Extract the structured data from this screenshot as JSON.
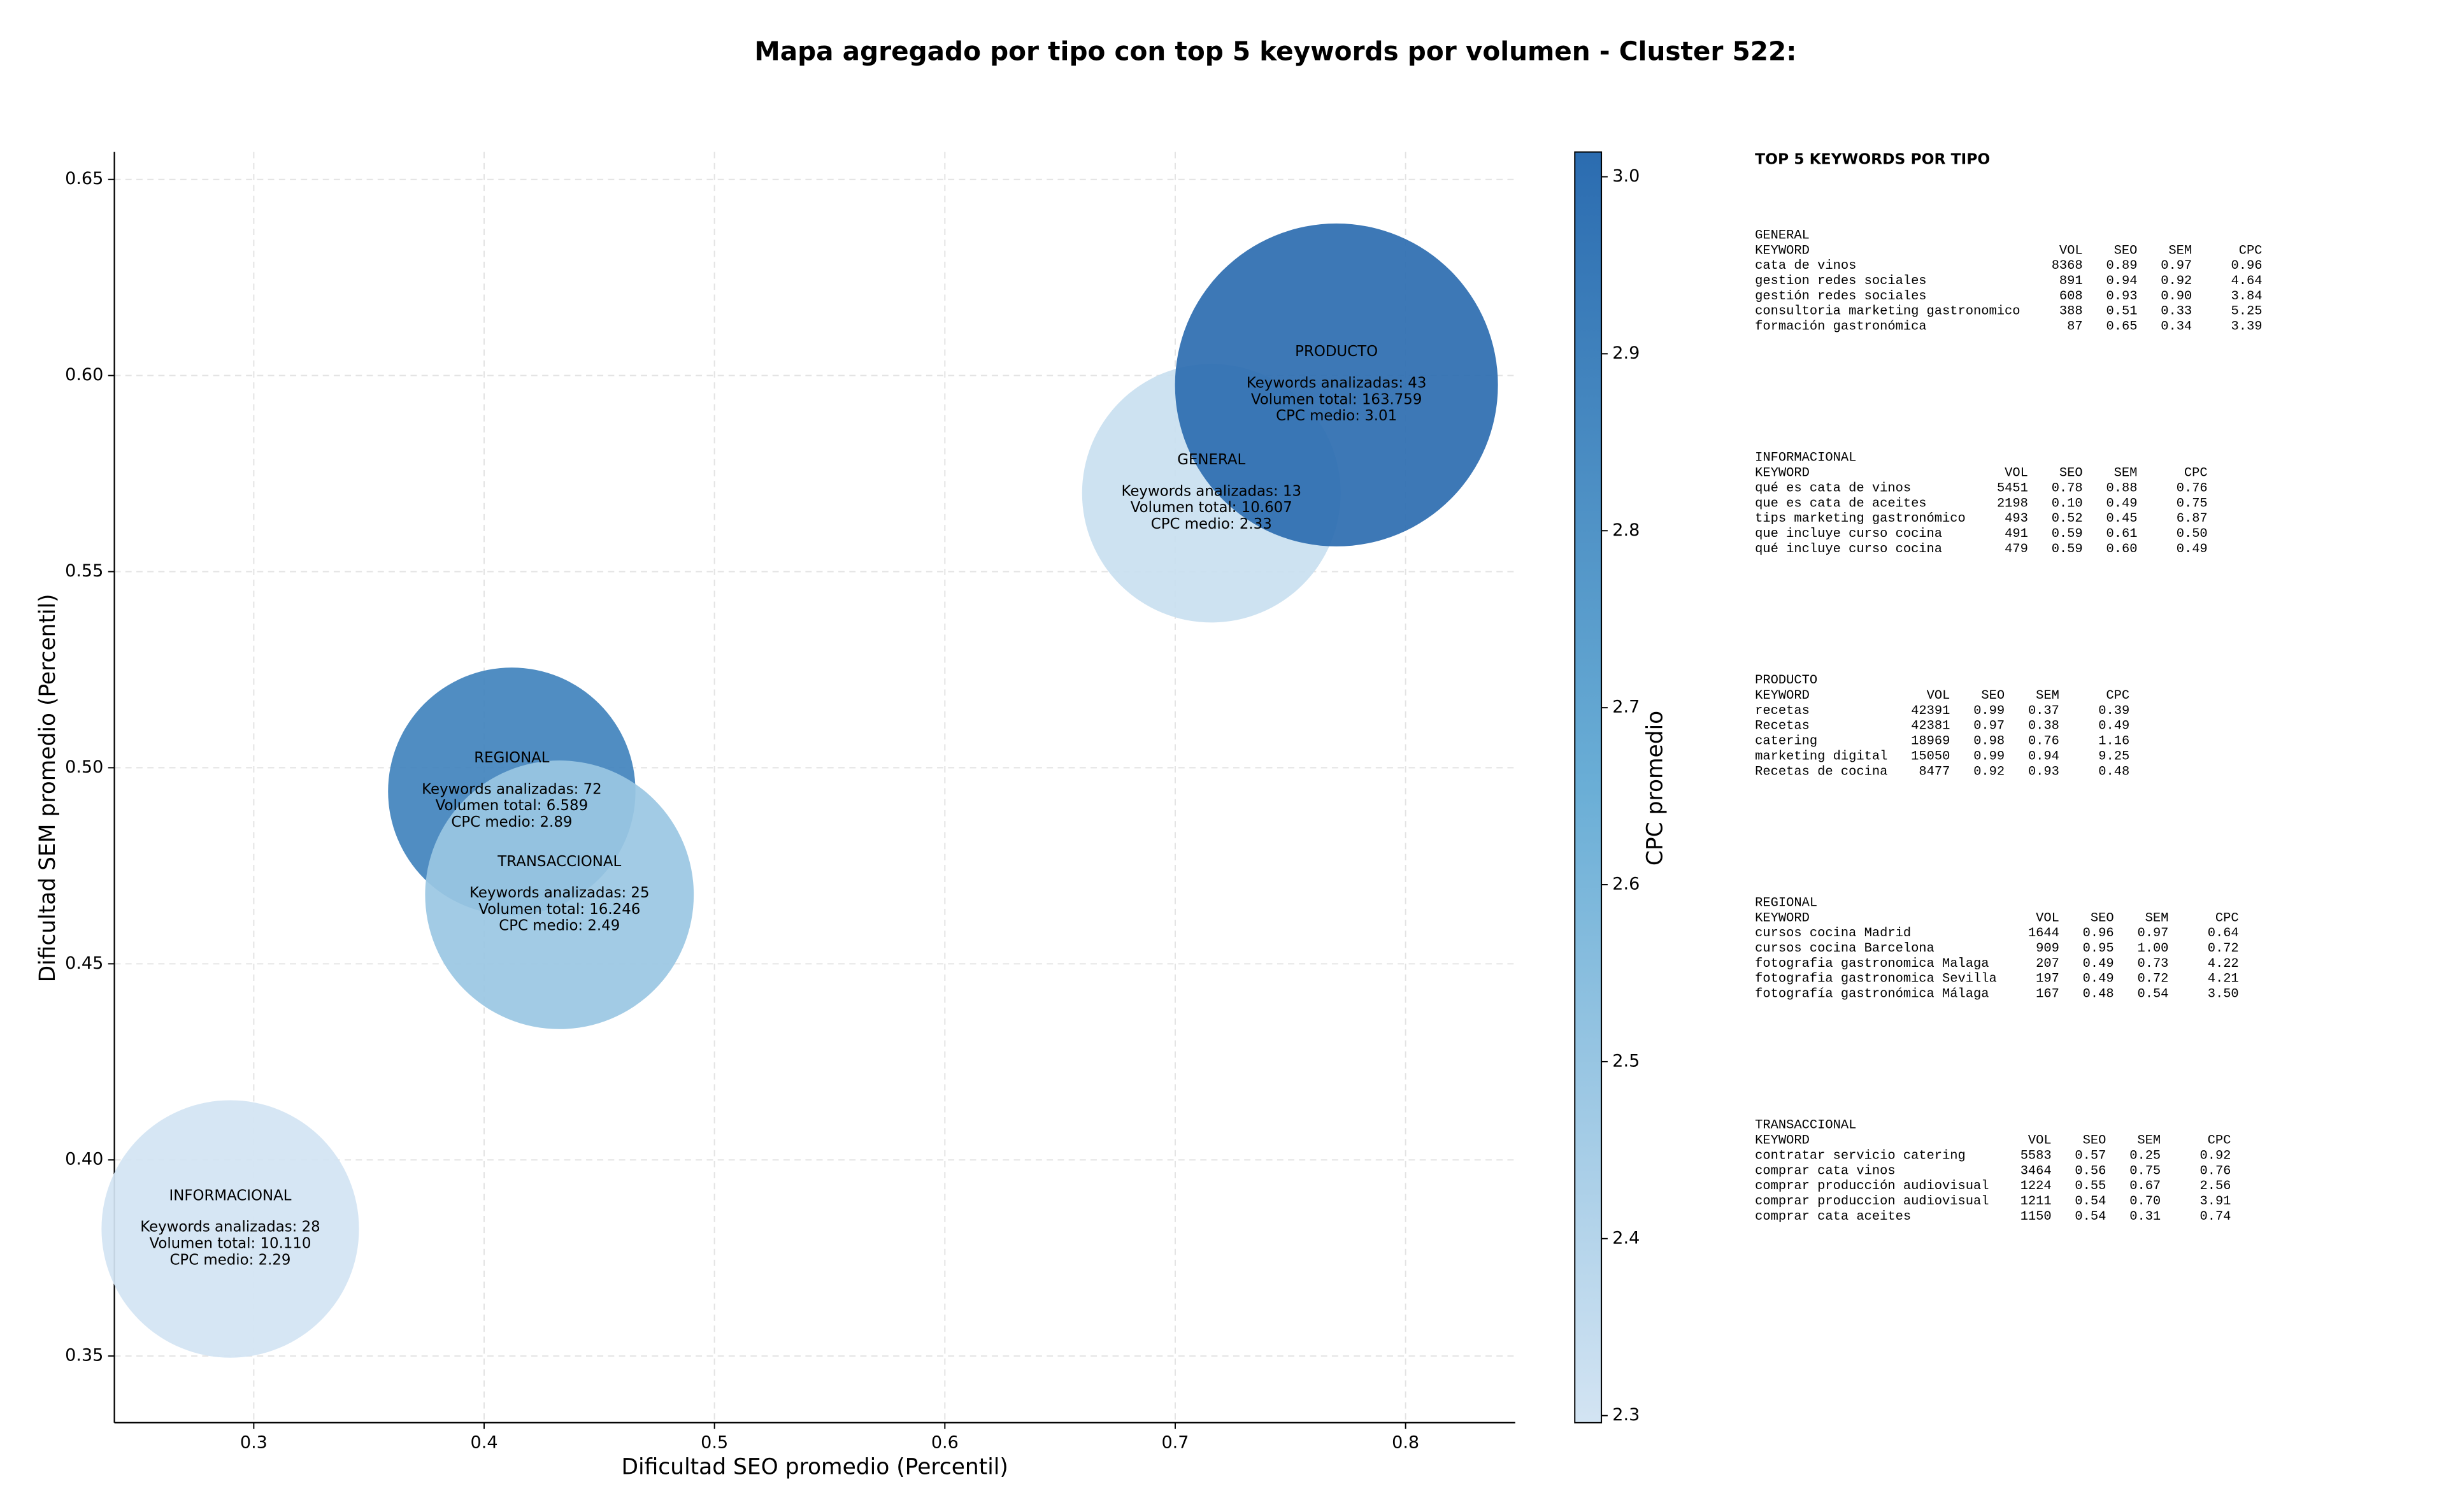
{
  "chart_data": {
    "type": "bubble",
    "title": "Mapa agregado por tipo con top 5 keywords por volumen - Cluster 522:",
    "x_label": "Dificultad SEO promedio (Percentil)",
    "y_label": "Dificultad SEM promedio (Percentil)",
    "xlim": [
      0.2395,
      0.8476
    ],
    "ylim": [
      0.333,
      0.657
    ],
    "xticks": [
      0.3,
      0.4,
      0.5,
      0.6,
      0.7,
      0.8
    ],
    "yticks": [
      0.35,
      {
        "value": 0.4,
        "label": "0.40"
      },
      0.45,
      {
        "value": 0.5,
        "label": "0.50"
      },
      0.55,
      {
        "value": 0.6,
        "label": "0.60"
      },
      0.65
    ],
    "grid": true,
    "colorbar": {
      "label": "CPC promedio",
      "clim": [
        2.296,
        3.014
      ],
      "ticks": [
        2.3,
        2.4,
        2.5,
        2.6,
        2.7,
        2.8,
        2.9,
        {
          "value": 3.0,
          "label": "3.0"
        }
      ],
      "colormap": [
        "#d3e4f3",
        "#6aaed6",
        "#2b6cb0"
      ]
    },
    "points": [
      {
        "name": "GENERAL",
        "x": 0.7157,
        "y": 0.57,
        "volume": 10607,
        "cpc": 2.33,
        "lines": [
          "Keywords analizadas: 13",
          "Volumen total: 10.607",
          "CPC medio: 2.33"
        ]
      },
      {
        "name": "INFORMACIONAL",
        "x": 0.2898,
        "y": 0.3824,
        "volume": 10110,
        "cpc": 2.29,
        "lines": [
          "Keywords analizadas: 28",
          "Volumen total: 10.110",
          "CPC medio: 2.29"
        ]
      },
      {
        "name": "PRODUCTO",
        "x": 0.77,
        "y": 0.5976,
        "volume": 163759,
        "cpc": 3.01,
        "lines": [
          "Keywords analizadas: 43",
          "Volumen total: 163.759",
          "CPC medio: 3.01"
        ]
      },
      {
        "name": "REGIONAL",
        "x": 0.412,
        "y": 0.494,
        "volume": 6589,
        "cpc": 2.89,
        "lines": [
          "Keywords analizadas: 72",
          "Volumen total: 6.589",
          "CPC medio: 2.89"
        ]
      },
      {
        "name": "TRANSACCIONAL",
        "x": 0.4327,
        "y": 0.4676,
        "volume": 16246,
        "cpc": 2.49,
        "lines": [
          "Keywords analizadas: 25",
          "Volumen total: 16.246",
          "CPC medio: 2.49"
        ]
      }
    ]
  },
  "panel": {
    "title": "TOP 5 KEYWORDS POR TIPO",
    "groups": [
      {
        "name": "GENERAL",
        "columns": [
          "KEYWORD",
          "VOL",
          "SEO",
          "SEM",
          "CPC"
        ],
        "rows": [
          [
            "cata de vinos",
            "8368",
            "0.89",
            "0.97",
            "0.96"
          ],
          [
            "gestion redes sociales",
            "891",
            "0.94",
            "0.92",
            "4.64"
          ],
          [
            "gestión redes sociales",
            "608",
            "0.93",
            "0.90",
            "3.84"
          ],
          [
            "consultoria marketing gastronomico",
            "388",
            "0.51",
            "0.33",
            "5.25"
          ],
          [
            "formación gastronómica",
            "87",
            "0.65",
            "0.34",
            "3.39"
          ]
        ]
      },
      {
        "name": "INFORMACIONAL",
        "columns": [
          "KEYWORD",
          "VOL",
          "SEO",
          "SEM",
          "CPC"
        ],
        "rows": [
          [
            "qué es cata de vinos",
            "5451",
            "0.78",
            "0.88",
            "0.76"
          ],
          [
            "que es cata de aceites",
            "2198",
            "0.10",
            "0.49",
            "0.75"
          ],
          [
            "tips marketing gastronómico",
            "493",
            "0.52",
            "0.45",
            "6.87"
          ],
          [
            "que incluye curso cocina",
            "491",
            "0.59",
            "0.61",
            "0.50"
          ],
          [
            "qué incluye curso cocina",
            "479",
            "0.59",
            "0.60",
            "0.49"
          ]
        ]
      },
      {
        "name": "PRODUCTO",
        "columns": [
          "KEYWORD",
          "VOL",
          "SEO",
          "SEM",
          "CPC"
        ],
        "rows": [
          [
            "recetas",
            "42391",
            "0.99",
            "0.37",
            "0.39"
          ],
          [
            "Recetas",
            "42381",
            "0.97",
            "0.38",
            "0.49"
          ],
          [
            "catering",
            "18969",
            "0.98",
            "0.76",
            "1.16"
          ],
          [
            "marketing digital",
            "15050",
            "0.99",
            "0.94",
            "9.25"
          ],
          [
            "Recetas de cocina",
            "8477",
            "0.92",
            "0.93",
            "0.48"
          ]
        ]
      },
      {
        "name": "REGIONAL",
        "columns": [
          "KEYWORD",
          "VOL",
          "SEO",
          "SEM",
          "CPC"
        ],
        "rows": [
          [
            "cursos cocina Madrid",
            "1644",
            "0.96",
            "0.97",
            "0.64"
          ],
          [
            "cursos cocina Barcelona",
            "909",
            "0.95",
            "1.00",
            "0.72"
          ],
          [
            "fotografia gastronomica Malaga",
            "207",
            "0.49",
            "0.73",
            "4.22"
          ],
          [
            "fotografia gastronomica Sevilla",
            "197",
            "0.49",
            "0.72",
            "4.21"
          ],
          [
            "fotografía gastronómica Málaga",
            "167",
            "0.48",
            "0.54",
            "3.50"
          ]
        ]
      },
      {
        "name": "TRANSACCIONAL",
        "columns": [
          "KEYWORD",
          "VOL",
          "SEO",
          "SEM",
          "CPC"
        ],
        "rows": [
          [
            "contratar servicio catering",
            "5583",
            "0.57",
            "0.25",
            "0.92"
          ],
          [
            "comprar cata vinos",
            "3464",
            "0.56",
            "0.75",
            "0.76"
          ],
          [
            "comprar producción audiovisual",
            "1224",
            "0.55",
            "0.67",
            "2.56"
          ],
          [
            "comprar produccion audiovisual",
            "1211",
            "0.54",
            "0.70",
            "3.91"
          ],
          [
            "comprar cata aceites",
            "1150",
            "0.54",
            "0.31",
            "0.74"
          ]
        ]
      }
    ]
  }
}
